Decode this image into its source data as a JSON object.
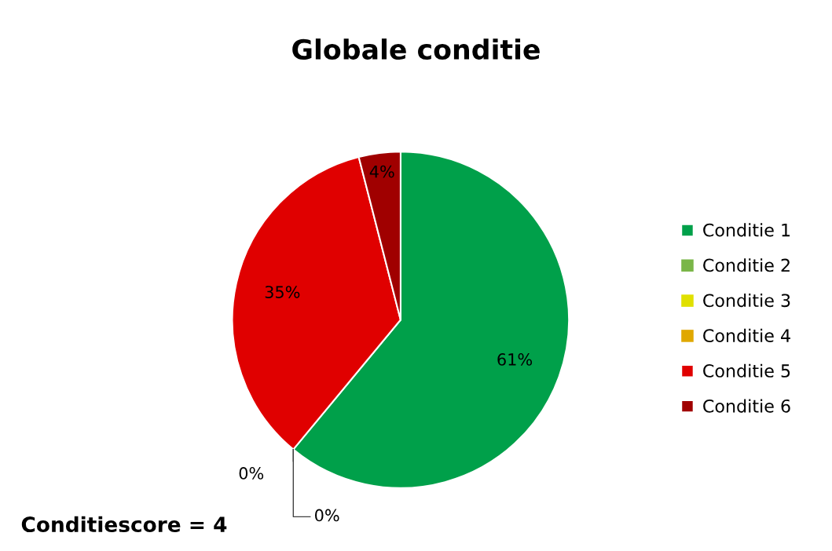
{
  "chart_data": {
    "type": "pie",
    "title": "Globale conditie",
    "categories": [
      "Conditie 1",
      "Conditie 2",
      "Conditie 3",
      "Conditie 4",
      "Conditie 5",
      "Conditie 6"
    ],
    "values": [
      61,
      0,
      0,
      0,
      35,
      4
    ],
    "colors": [
      "#00a04a",
      "#7ab648",
      "#e0e000",
      "#e0a800",
      "#e00000",
      "#a00000"
    ],
    "value_labels": [
      "61%",
      "0%",
      "0%",
      null,
      "35%",
      "4%"
    ],
    "legend": "right",
    "annotations": [
      "Conditiescore = 4"
    ]
  }
}
